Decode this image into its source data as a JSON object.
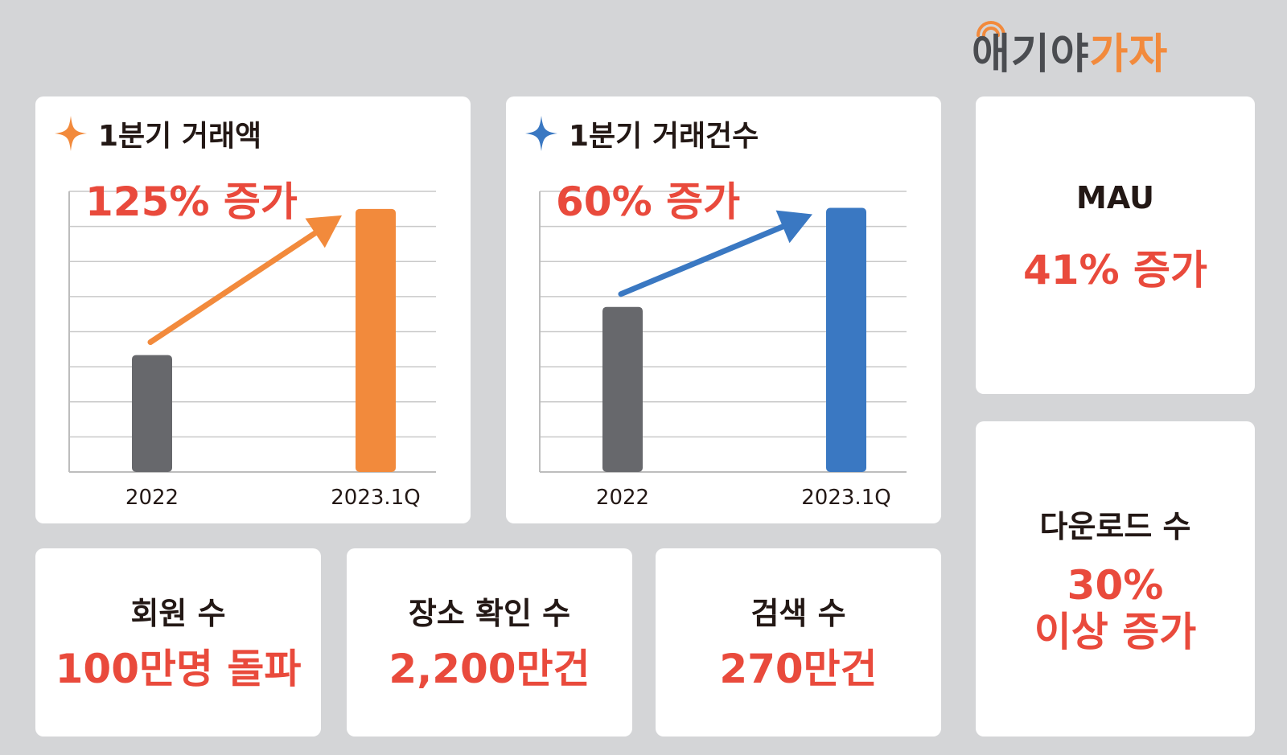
{
  "logo": {
    "part1": "애기야",
    "part2": "가자"
  },
  "colors": {
    "accent_red": "#e94a3c",
    "orange": "#f28a3c",
    "blue": "#3a78c2",
    "gray_bar": "#67686c",
    "dark_text": "#231815"
  },
  "chart_data": [
    {
      "type": "bar",
      "title": "1분기 거래액",
      "annotation": "125% 증가",
      "categories": [
        "2022",
        "2023.1Q"
      ],
      "values": [
        100,
        225
      ],
      "colors": [
        "#67686c",
        "#f28a3c"
      ],
      "ylim": [
        0,
        240
      ],
      "grid": true
    },
    {
      "type": "bar",
      "title": "1분기 거래건수",
      "annotation": "60% 증가",
      "categories": [
        "2022",
        "2023.1Q"
      ],
      "values": [
        100,
        160
      ],
      "colors": [
        "#67686c",
        "#3a78c2"
      ],
      "ylim": [
        0,
        170
      ],
      "grid": true
    }
  ],
  "stats": {
    "mau": {
      "label": "MAU",
      "value": "41% 증가"
    },
    "downloads": {
      "label": "다운로드 수",
      "value_line1": "30%",
      "value_line2": "이상 증가"
    },
    "members": {
      "label": "회원 수",
      "value": "100만명 돌파"
    },
    "place_checks": {
      "label": "장소 확인 수",
      "value": "2,200만건"
    },
    "searches": {
      "label": "검색 수",
      "value": "270만건"
    }
  }
}
